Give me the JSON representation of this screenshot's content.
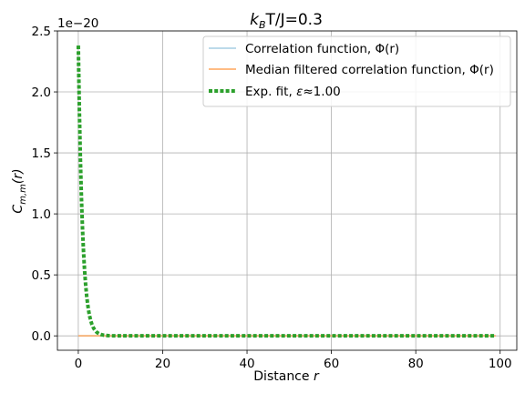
{
  "chart_data": {
    "type": "line",
    "title": "k_BT/J=0.3",
    "title_parts": {
      "k": "k",
      "sub": "B",
      "rest": "T/J=0.3"
    },
    "xlabel": "Distance r",
    "xlabel_parts": {
      "text": "Distance ",
      "var": "r"
    },
    "ylabel": "C_{m,m}(r)",
    "ylabel_parts": {
      "c": "C",
      "sub": "m,m",
      "rest": "(r)"
    },
    "y_offset_text": "1e−20",
    "xlim": [
      -4.95,
      103.95
    ],
    "ylim": [
      -0.118,
      2.5
    ],
    "x_ticks": [
      0,
      20,
      40,
      60,
      80,
      100
    ],
    "x_tick_labels": [
      "0",
      "20",
      "40",
      "60",
      "80",
      "100"
    ],
    "y_ticks": [
      0.0,
      0.5,
      1.0,
      1.5,
      2.0,
      2.5
    ],
    "y_tick_labels": [
      "0.0",
      "0.5",
      "1.0",
      "1.5",
      "2.0",
      "2.5"
    ],
    "y_scale_note": "values in units of 1e-20",
    "grid": true,
    "legend_position": "upper-right",
    "series": [
      {
        "name": "Correlation function, Φ(r)",
        "color": "#a6cee3",
        "style": "solid",
        "x_range": [
          0,
          99
        ],
        "values_note": "approximately zero",
        "y_constant": 0
      },
      {
        "name": "Median filtered correlation function, Φ(r)",
        "color": "#ffa65c",
        "style": "solid",
        "x_range": [
          0,
          99
        ],
        "y_constant": 0
      },
      {
        "name": "Exp. fit, ε≈1.00",
        "name_parts": {
          "prefix": "Exp. fit, ",
          "var": "ε",
          "rest": "≈1.00"
        },
        "color": "#2ca02c",
        "style": "dotted",
        "model": "A*exp(-x/eps)",
        "amplitude": 2.38,
        "epsilon": 1.0,
        "x_range": [
          0,
          99
        ]
      }
    ]
  }
}
